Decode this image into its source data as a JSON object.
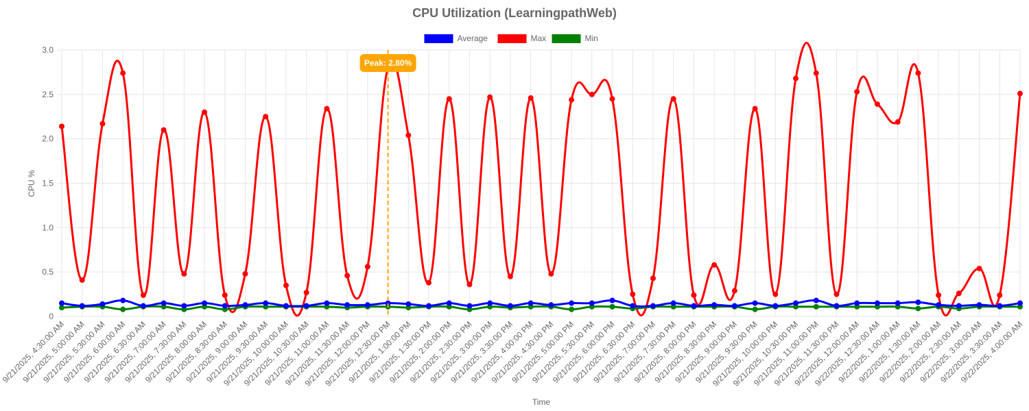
{
  "chart_data": {
    "type": "line",
    "title": "CPU Utilization (LearningpathWeb)",
    "xlabel": "Time",
    "ylabel": "CPU %",
    "ylim": [
      0,
      3.0
    ],
    "yticks": [
      "0",
      "0.5",
      "1.0",
      "1.5",
      "2.0",
      "2.5",
      "3.0"
    ],
    "grid": true,
    "legend_position": "top",
    "categories": [
      "9/21/2025, 4:30:00 AM",
      "9/21/2025, 5:00:00 AM",
      "9/21/2025, 5:30:00 AM",
      "9/21/2025, 6:00:00 AM",
      "9/21/2025, 6:30:00 AM",
      "9/21/2025, 7:00:00 AM",
      "9/21/2025, 7:30:00 AM",
      "9/21/2025, 8:00:00 AM",
      "9/21/2025, 8:30:00 AM",
      "9/21/2025, 9:00:00 AM",
      "9/21/2025, 9:30:00 AM",
      "9/21/2025, 10:00:00 AM",
      "9/21/2025, 10:30:00 AM",
      "9/21/2025, 11:00:00 AM",
      "9/21/2025, 11:30:00 AM",
      "9/21/2025, 12:00:00 PM",
      "9/21/2025, 12:30:00 PM",
      "9/21/2025, 1:00:00 PM",
      "9/21/2025, 1:30:00 PM",
      "9/21/2025, 2:00:00 PM",
      "9/21/2025, 2:30:00 PM",
      "9/21/2025, 3:00:00 PM",
      "9/21/2025, 3:30:00 PM",
      "9/21/2025, 4:00:00 PM",
      "9/21/2025, 4:30:00 PM",
      "9/21/2025, 5:00:00 PM",
      "9/21/2025, 5:30:00 PM",
      "9/21/2025, 6:00:00 PM",
      "9/21/2025, 6:30:00 PM",
      "9/21/2025, 7:00:00 PM",
      "9/21/2025, 7:30:00 PM",
      "9/21/2025, 8:00:00 PM",
      "9/21/2025, 8:30:00 PM",
      "9/21/2025, 9:00:00 PM",
      "9/21/2025, 9:30:00 PM",
      "9/21/2025, 10:00:00 PM",
      "9/21/2025, 10:30:00 PM",
      "9/21/2025, 11:00:00 PM",
      "9/21/2025, 11:30:00 PM",
      "9/22/2025, 12:00:00 AM",
      "9/22/2025, 12:30:00 AM",
      "9/22/2025, 1:00:00 AM",
      "9/22/2025, 1:30:00 AM",
      "9/22/2025, 2:00:00 AM",
      "9/22/2025, 2:30:00 AM",
      "9/22/2025, 3:00:00 AM",
      "9/22/2025, 3:30:00 AM",
      "9/22/2025, 4:00:00 AM"
    ],
    "series": [
      {
        "name": "Average",
        "color": "#0000ff",
        "values": [
          0.15,
          0.12,
          0.14,
          0.18,
          0.12,
          0.15,
          0.12,
          0.15,
          0.12,
          0.13,
          0.15,
          0.12,
          0.12,
          0.15,
          0.13,
          0.13,
          0.15,
          0.14,
          0.12,
          0.15,
          0.12,
          0.15,
          0.12,
          0.15,
          0.13,
          0.15,
          0.15,
          0.18,
          0.12,
          0.12,
          0.15,
          0.12,
          0.13,
          0.12,
          0.15,
          0.12,
          0.15,
          0.18,
          0.12,
          0.15,
          0.15,
          0.15,
          0.16,
          0.13,
          0.12,
          0.13,
          0.12,
          0.15
        ]
      },
      {
        "name": "Max",
        "color": "#ff0000",
        "values": [
          2.14,
          0.41,
          2.17,
          2.74,
          0.24,
          2.1,
          0.48,
          2.3,
          0.24,
          0.48,
          2.25,
          0.35,
          0.27,
          2.34,
          0.46,
          0.56,
          2.8,
          2.04,
          0.38,
          2.45,
          0.36,
          2.47,
          0.45,
          2.46,
          0.48,
          2.44,
          2.5,
          2.45,
          0.25,
          0.43,
          2.45,
          0.24,
          0.58,
          0.29,
          2.34,
          0.25,
          2.68,
          2.74,
          0.25,
          2.53,
          2.39,
          2.19,
          2.74,
          0.24,
          0.26,
          0.54,
          0.24,
          2.51
        ]
      },
      {
        "name": "Min",
        "color": "#008000",
        "values": [
          0.1,
          0.11,
          0.11,
          0.08,
          0.11,
          0.11,
          0.08,
          0.11,
          0.08,
          0.11,
          0.11,
          0.11,
          0.11,
          0.11,
          0.1,
          0.11,
          0.11,
          0.1,
          0.11,
          0.11,
          0.08,
          0.11,
          0.1,
          0.11,
          0.11,
          0.08,
          0.11,
          0.11,
          0.09,
          0.11,
          0.11,
          0.11,
          0.11,
          0.11,
          0.08,
          0.11,
          0.11,
          0.11,
          0.11,
          0.11,
          0.11,
          0.11,
          0.09,
          0.11,
          0.09,
          0.11,
          0.11,
          0.11
        ]
      }
    ],
    "annotation": {
      "label": "Peak: 2.80%",
      "category_index": 16,
      "line_color": "#ffa500",
      "box_color": "#ffa500"
    }
  }
}
